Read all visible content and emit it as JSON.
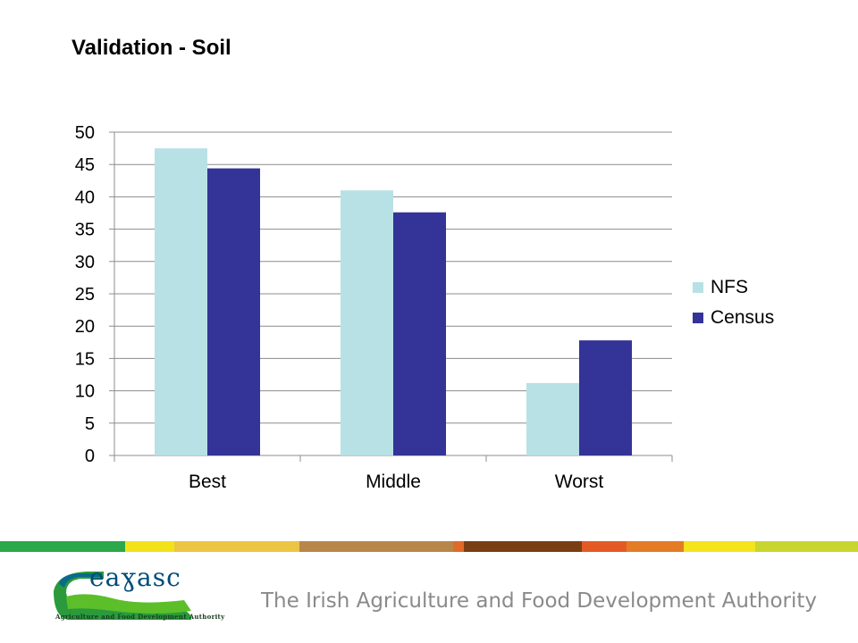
{
  "slide": {
    "title": "Validation - Soil"
  },
  "chart_data": {
    "type": "bar",
    "categories": [
      "Best",
      "Middle",
      "Worst"
    ],
    "series": [
      {
        "name": "NFS",
        "values": [
          47.5,
          41,
          11.2
        ],
        "color": "#b8e1e5"
      },
      {
        "name": "Census",
        "values": [
          44.4,
          37.6,
          17.8
        ],
        "color": "#343398"
      }
    ],
    "ylim": [
      0,
      50
    ],
    "yticks": [
      0,
      5,
      10,
      15,
      20,
      25,
      30,
      35,
      40,
      45,
      50
    ],
    "grid": true,
    "legend": "right",
    "xlabel": "",
    "ylabel": ""
  },
  "footer": {
    "stripe_colors": [
      "#2aa84a",
      "#f2e21a",
      "#ecc544",
      "#b9864a",
      "#e06a28",
      "#7a3e14",
      "#e45a25",
      "#e47b25",
      "#f3e41c",
      "#c8d52f"
    ],
    "logo_word": "eaɣasc",
    "logo_subtitle": "Agriculture and Food Development Authority",
    "tagline": "The Irish Agriculture and Food Development Authority"
  }
}
